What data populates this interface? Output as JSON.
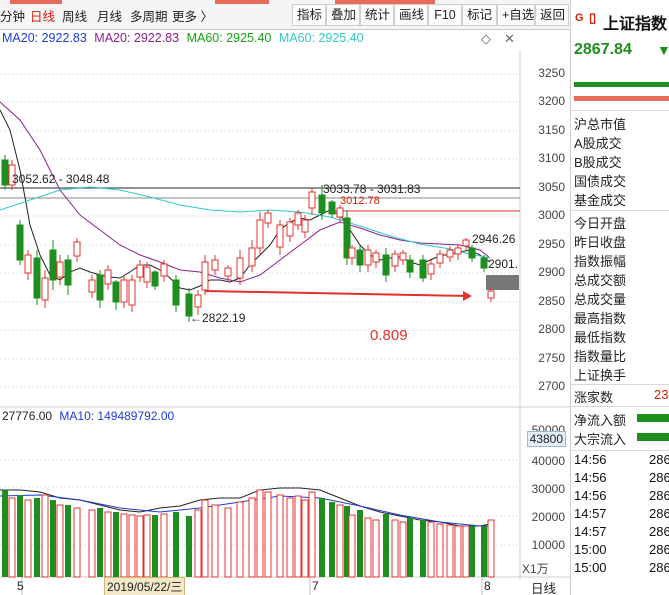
{
  "toolbar": {
    "tabs": [
      "分钟",
      "日线",
      "周线",
      "月线",
      "多周期",
      "更多 〉"
    ],
    "active_tab": "日线",
    "buttons": [
      "指标",
      "叠加",
      "统计",
      "画线",
      "F10",
      "标记",
      "+自选",
      "返回"
    ]
  },
  "indicators": {
    "ma20a": "MA20: 2922.83",
    "ma20b": "MA20: 2922.83",
    "ma60a": "MA60: 2925.40",
    "ma60b": "MA60: 2925.40",
    "ma20_color": "#1f3bd6",
    "ma60_color": "#14a514",
    "ma60b_color": "#32c8c8",
    "ma20b_color": "#8b1f8b"
  },
  "price_axis": [
    "3250",
    "3200",
    "3150",
    "3100",
    "3050",
    "3000",
    "2950",
    "2900",
    "2850",
    "2800",
    "2750",
    "2700"
  ],
  "volume_axis": [
    "50000",
    "43800",
    "40000",
    "30000",
    "20000",
    "10000"
  ],
  "annotations": {
    "range_left": "3052.62 - 3048.48",
    "range_mid": "3033.78 - 3031.83",
    "level_3012": "3012.78",
    "high_right": "2946.26",
    "last_price": "2901.",
    "low_point": "←2822.19",
    "ratio": "0.809"
  },
  "volume_header": {
    "a": "27776.00",
    "b": "MA10: 149489792.00"
  },
  "date_axis": {
    "d1": "5",
    "selected": "2019/05/22/三",
    "d2": "7",
    "d3": "8",
    "x1": "X1万",
    "period": "日线"
  },
  "right_panel": {
    "badge": "G",
    "title": "上证指数",
    "price": "2867.84",
    "arrow": "▼",
    "labels": [
      "沪总市值",
      "A股成交",
      "B股成交",
      "国债成交",
      "基金成交",
      "今日开盘",
      "昨日收盘",
      "指数振幅",
      "总成交额",
      "总成交量",
      "最高指数",
      "最低指数",
      "指数量比",
      "上证换手"
    ],
    "rise_label": "涨家数",
    "rise_value": "23",
    "flow_in": "净流入额",
    "block_in": "大宗流入",
    "ticks": [
      {
        "time": "14:56",
        "value": "286"
      },
      {
        "time": "14:56",
        "value": "286"
      },
      {
        "time": "14:56",
        "value": "286"
      },
      {
        "time": "14:57",
        "value": "286"
      },
      {
        "time": "14:57",
        "value": "286"
      },
      {
        "time": "15:00",
        "value": "286"
      },
      {
        "time": "15:00",
        "value": "286"
      }
    ]
  },
  "colors": {
    "up": "#e0332c",
    "down": "#1e8f1e",
    "accent": "#d81e06",
    "ref_line": "#555555",
    "red_line": "#e0332c"
  }
}
